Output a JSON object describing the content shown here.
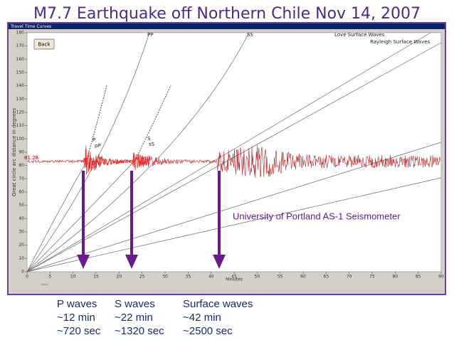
{
  "title": "M7.7 Earthquake off Northern Chile Nov 14, 2007",
  "window": {
    "title": "Travel Time Curves",
    "back_button": "Back"
  },
  "plot": {
    "xlabel": "Minutes",
    "ylabel": "Great circle arc distance in degrees",
    "xlim": [
      0,
      90
    ],
    "ylim": [
      0,
      180
    ],
    "xticks": [
      0,
      5,
      10,
      15,
      20,
      25,
      30,
      35,
      40,
      45,
      50,
      55,
      60,
      65,
      70,
      75,
      80,
      85,
      90
    ],
    "yticks": [
      0,
      10,
      20,
      30,
      40,
      50,
      60,
      70,
      80,
      90,
      100,
      110,
      120,
      130,
      140,
      150,
      160,
      170,
      180
    ],
    "curve_labels": [
      "PP",
      "SS",
      "Love Surface Waves",
      "Rayleigh Surface Waves",
      "P",
      "pP",
      "S",
      "sS"
    ],
    "station_distance": "81.28",
    "source": "University of Portland AS-1 Seismometer"
  },
  "annotations": [
    {
      "name": "P waves",
      "minutes": "~12 min",
      "seconds": "~720 sec"
    },
    {
      "name": "S waves",
      "minutes": "~22 min",
      "seconds": "~1320 sec"
    },
    {
      "name": "Surface waves",
      "minutes": "~42 min",
      "seconds": "~2500 sec"
    }
  ]
}
